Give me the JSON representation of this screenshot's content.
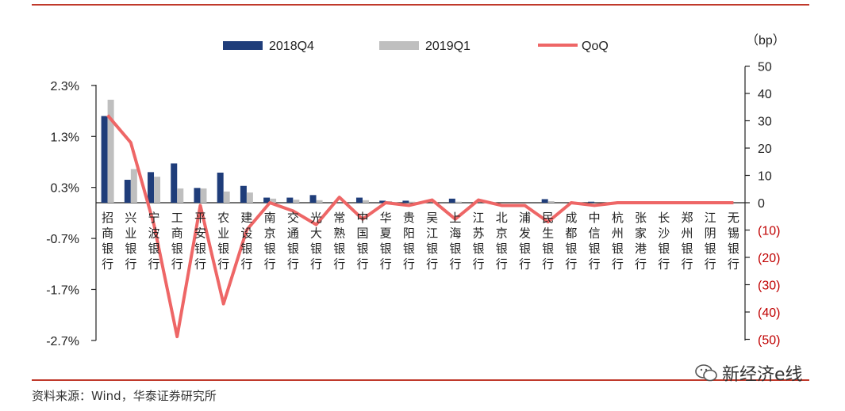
{
  "chart_data": {
    "type": "bar",
    "categories": [
      "招商银行",
      "兴业银行",
      "宁波银行",
      "工商银行",
      "平安银行",
      "农业银行",
      "建设银行",
      "南京银行",
      "交通银行",
      "光大银行",
      "常熟银行",
      "中国银行",
      "华夏银行",
      "贵阳银行",
      "吴江银行",
      "上海银行",
      "江苏银行",
      "北京银行",
      "浦发银行",
      "民生银行",
      "成都银行",
      "中信银行",
      "杭州银行",
      "张家港行",
      "长沙银行",
      "郑州银行",
      "江阴银行",
      "无锡银行"
    ],
    "series": [
      {
        "name": "2018Q4",
        "type": "bar",
        "axis": "left",
        "color": "#1f3d7a",
        "values": [
          1.7,
          0.45,
          0.6,
          0.77,
          0.29,
          0.59,
          0.33,
          0.1,
          0.1,
          0.15,
          0.0,
          0.1,
          0.04,
          0.04,
          0.0,
          0.08,
          0.0,
          0.0,
          0.0,
          0.07,
          0.0,
          0.02,
          0.0,
          0.0,
          0.0,
          0.0,
          0.0,
          0.0
        ]
      },
      {
        "name": "2019Q1",
        "type": "bar",
        "axis": "left",
        "color": "#bfbfbf",
        "values": [
          2.02,
          0.66,
          0.51,
          0.28,
          0.28,
          0.22,
          0.2,
          0.08,
          0.06,
          0.05,
          0.0,
          0.05,
          0.03,
          0.02,
          0.0,
          0.02,
          0.0,
          0.0,
          0.0,
          0.03,
          0.0,
          0.0,
          0.0,
          0.0,
          0.0,
          0.0,
          0.0,
          0.0
        ]
      },
      {
        "name": "QoQ",
        "type": "line",
        "axis": "right",
        "color": "#ee6666",
        "values": [
          32,
          22,
          -8,
          -49,
          -1,
          -37,
          -10,
          0,
          -3,
          -8,
          2,
          -6,
          0,
          -1,
          1,
          -6,
          1,
          -1,
          -1,
          -7,
          0,
          -1,
          0,
          0,
          0,
          0,
          0,
          0
        ]
      }
    ],
    "y_left": {
      "ticks": [
        "2.3%",
        "1.3%",
        "0.3%",
        "-0.7%",
        "-1.7%",
        "-2.7%"
      ],
      "tick_values": [
        2.3,
        1.3,
        0.3,
        -0.7,
        -1.7,
        -2.7
      ],
      "ylim": [
        -2.7,
        2.3
      ],
      "zero": 0.0
    },
    "y_right": {
      "label": "（bp）",
      "ticks": [
        "50",
        "40",
        "30",
        "20",
        "10",
        "0",
        "(10)",
        "(20)",
        "(30)",
        "(40)",
        "(50)"
      ],
      "tick_values": [
        50,
        40,
        30,
        20,
        10,
        0,
        -10,
        -20,
        -30,
        -40,
        -50
      ],
      "ylim": [
        -50,
        50
      ]
    },
    "legend": {
      "placement": "top",
      "items": [
        "2018Q4",
        "2019Q1",
        "QoQ"
      ]
    },
    "grid": false
  },
  "source": "资料来源：Wind，华泰证券研究所",
  "watermark": "新经济e线"
}
